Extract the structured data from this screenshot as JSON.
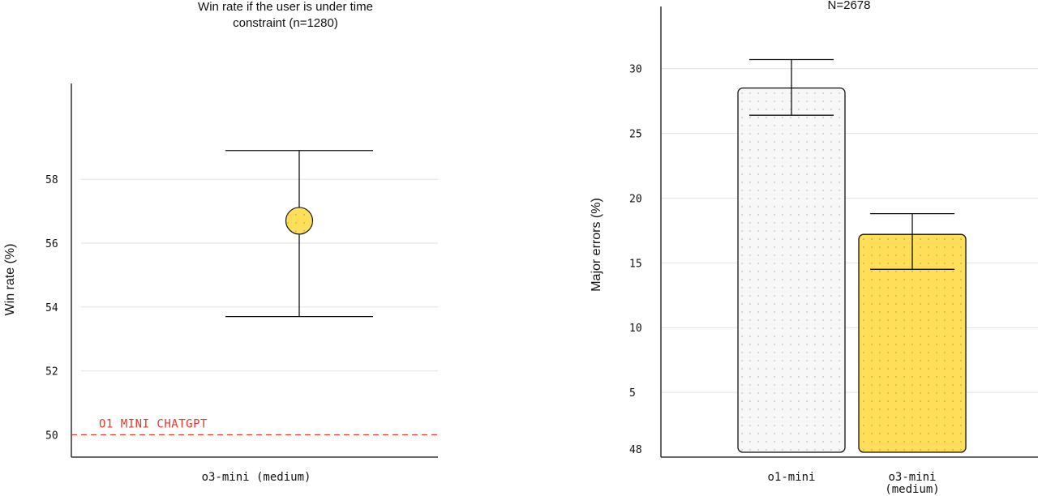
{
  "colors": {
    "accent_yellow": "#ffde59",
    "light_bar": "#f7f7f7",
    "axis": "#111111",
    "grid": "#e2e2e2",
    "reference_red": "#e8352b",
    "dot": "#bdbdbd"
  },
  "chart_data": [
    {
      "type": "scatter",
      "title_lines": [
        "Win rate if the user is under time",
        "constraint (n=1280)"
      ],
      "xlabel": "",
      "ylabel": "Win rate (%)",
      "categories": [
        "o3-mini (medium)"
      ],
      "series": [
        {
          "values": [
            56.7
          ],
          "ci_low": [
            53.7
          ],
          "ci_high": [
            58.9
          ]
        }
      ],
      "reference_line": {
        "value": 50,
        "label": "O1 MINI CHATGPT"
      },
      "y_ticks": [
        50,
        52,
        54,
        56,
        58
      ],
      "ylim": [
        49.3,
        61
      ],
      "grid": true
    },
    {
      "type": "bar",
      "title_lines": [
        "N=2678"
      ],
      "xlabel": "",
      "ylabel": "Major errors (%)",
      "categories": [
        "o1-mini",
        "o3-mini (medium)"
      ],
      "category_lines": [
        [
          "o1-mini"
        ],
        [
          "o3-mini",
          "(medium)"
        ]
      ],
      "values": [
        28.5,
        17.2
      ],
      "error_low": [
        26.4,
        14.5
      ],
      "error_high": [
        30.7,
        18.8
      ],
      "y_ticks": [
        5,
        10,
        15,
        20,
        25,
        30
      ],
      "ylim": [
        0,
        34.8
      ],
      "bottom_tick_label": "48",
      "grid": true
    }
  ]
}
